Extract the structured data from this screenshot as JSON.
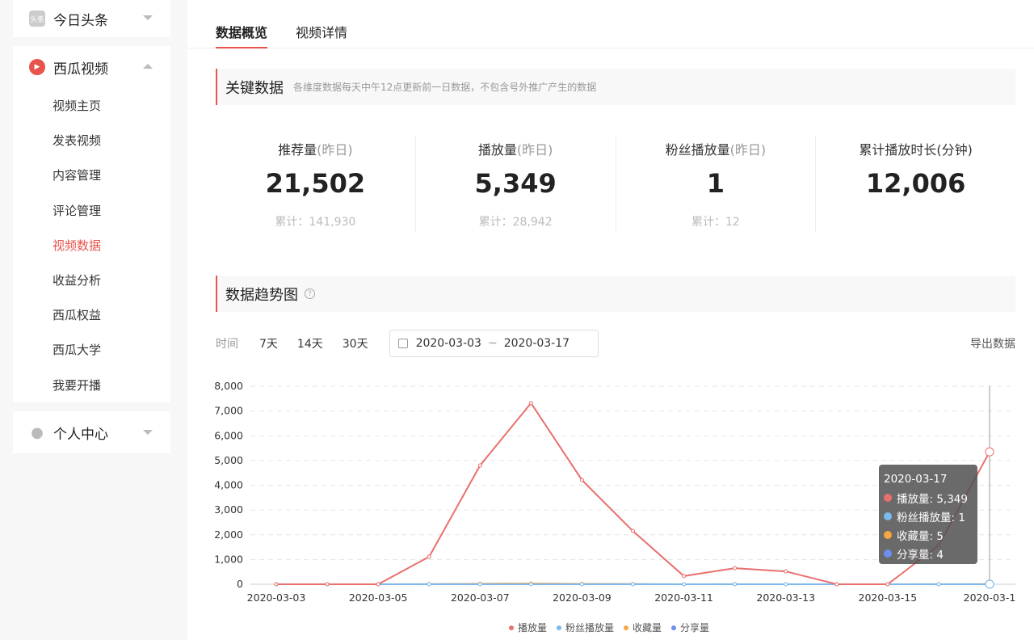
{
  "sidebar": {
    "groups": [
      {
        "label": "今日头条",
        "icon": "toutiao-logo-icon",
        "logo_text": "头条",
        "expanded": false
      },
      {
        "label": "西瓜视频",
        "icon": "xigua-logo-icon",
        "expanded": true,
        "items": [
          "视频主页",
          "发表视频",
          "内容管理",
          "评论管理",
          "视频数据",
          "收益分析",
          "西瓜权益",
          "西瓜大学",
          "我要开播"
        ],
        "active": "视频数据"
      },
      {
        "label": "个人中心",
        "icon": "user-icon",
        "expanded": false
      }
    ]
  },
  "tabs": [
    {
      "label": "数据概览",
      "active": true
    },
    {
      "label": "视频详情",
      "active": false
    }
  ],
  "key_data": {
    "title": "关键数据",
    "note": "各维度数据每天中午12点更新前一日数据，不包含号外推广产生的数据",
    "stats": [
      {
        "label": "推荐量",
        "suffix": "(昨日)",
        "value": "21,502",
        "total": "累计：141,930"
      },
      {
        "label": "播放量",
        "suffix": "(昨日)",
        "value": "5,349",
        "total": "累计：28,942"
      },
      {
        "label": "粉丝播放量",
        "suffix": "(昨日)",
        "value": "1",
        "total": "累计：12"
      },
      {
        "label": "累计播放时长(分钟)",
        "suffix": "",
        "value": "12,006",
        "total": ""
      }
    ]
  },
  "trend": {
    "title": "数据趋势图",
    "help_icon": "question-circle-icon",
    "time_label": "时间",
    "ranges": [
      "7天",
      "14天",
      "30天"
    ],
    "date_start": "2020-03-03",
    "date_sep": "~",
    "date_end": "2020-03-17",
    "export": "导出数据"
  },
  "tooltip": {
    "date": "2020-03-17",
    "rows": [
      {
        "label": "播放量: 5,349",
        "color": "#e8706e"
      },
      {
        "label": "粉丝播放量: 1",
        "color": "#7cb9ec"
      },
      {
        "label": "收藏量: 5",
        "color": "#f5a742"
      },
      {
        "label": "分享量: 4",
        "color": "#6e8ff0"
      }
    ]
  },
  "chart_data": {
    "type": "line",
    "x": [
      "2020-03-03",
      "2020-03-04",
      "2020-03-05",
      "2020-03-06",
      "2020-03-07",
      "2020-03-08",
      "2020-03-09",
      "2020-03-10",
      "2020-03-11",
      "2020-03-12",
      "2020-03-13",
      "2020-03-14",
      "2020-03-15",
      "2020-03-16",
      "2020-03-17"
    ],
    "xticks": [
      "2020-03-03",
      "2020-03-05",
      "2020-03-07",
      "2020-03-09",
      "2020-03-11",
      "2020-03-13",
      "2020-03-15",
      "2020-03-1"
    ],
    "ylim": [
      0,
      8000
    ],
    "yticks": [
      "0",
      "1,000",
      "2,000",
      "3,000",
      "4,000",
      "5,000",
      "6,000",
      "7,000",
      "8,000"
    ],
    "grid": true,
    "legend_position": "bottom",
    "series": [
      {
        "name": "播放量",
        "color": "#e8706e",
        "values": [
          0,
          0,
          0,
          1110,
          4800,
          7320,
          4210,
          2150,
          330,
          650,
          520,
          0,
          0,
          1570,
          5349
        ]
      },
      {
        "name": "粉丝播放量",
        "color": "#7cb9ec",
        "values": [
          0,
          0,
          0,
          0,
          1,
          2,
          1,
          1,
          0,
          0,
          0,
          0,
          0,
          0,
          1
        ]
      },
      {
        "name": "收藏量",
        "color": "#f5a742",
        "values": [
          0,
          0,
          0,
          5,
          20,
          30,
          15,
          8,
          2,
          3,
          2,
          0,
          0,
          3,
          5
        ]
      },
      {
        "name": "分享量",
        "color": "#6e8ff0",
        "values": [
          0,
          0,
          0,
          3,
          10,
          15,
          8,
          5,
          1,
          2,
          1,
          0,
          0,
          2,
          4
        ]
      }
    ]
  }
}
